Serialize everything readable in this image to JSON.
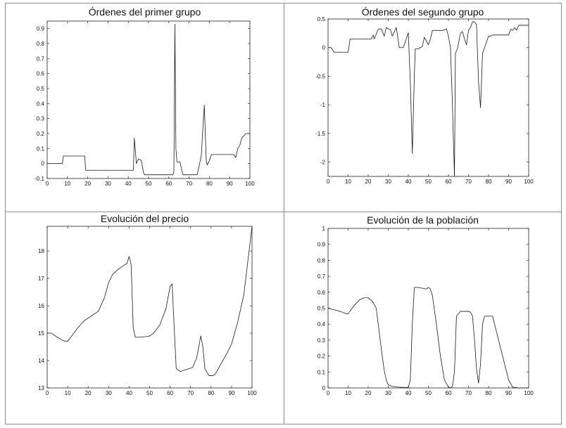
{
  "chart_data": [
    {
      "type": "line",
      "title": "Órdenes del primer grupo",
      "xlabel": "",
      "ylabel": "",
      "xlim": [
        0,
        100
      ],
      "ylim": [
        -0.1,
        0.95
      ],
      "xticks": [
        0,
        10,
        20,
        30,
        40,
        50,
        60,
        70,
        80,
        90,
        100
      ],
      "yticks": [
        -0.1,
        0,
        0.1,
        0.2,
        0.3,
        0.4,
        0.5,
        0.6,
        0.7,
        0.8,
        0.9
      ],
      "ytick_labels": [
        "-0.1",
        "0",
        "0.1",
        "0.2",
        "0.3",
        "0.4",
        "0.5",
        "0.6",
        "0.7",
        "0.8",
        "0.9"
      ],
      "grid": false,
      "series": [
        {
          "x": [
            0,
            7.5,
            8,
            18.5,
            19,
            42.5,
            43,
            44,
            45,
            46.5,
            47.5,
            48,
            62,
            62.5,
            63,
            63.5,
            64,
            65.5,
            66.5,
            67,
            72.5,
            74,
            76,
            77,
            77.5,
            78.5,
            79,
            80,
            81,
            82,
            92,
            93,
            94,
            95,
            96,
            98,
            100
          ],
          "y": [
            0,
            0,
            0.05,
            0.05,
            -0.045,
            -0.045,
            0.17,
            0.0,
            0.03,
            0.02,
            -0.06,
            -0.075,
            -0.075,
            -0.06,
            0.93,
            0.1,
            0.01,
            0.01,
            -0.05,
            -0.075,
            -0.075,
            -0.075,
            0.05,
            0.28,
            0.39,
            0.01,
            -0.01,
            0.02,
            0.06,
            0.06,
            0.06,
            0.04,
            0.1,
            0.12,
            0.17,
            0.2,
            0.2
          ]
        }
      ]
    },
    {
      "type": "line",
      "title": "Órdenes del segundo grupo",
      "xlabel": "",
      "ylabel": "",
      "xlim": [
        0,
        100
      ],
      "ylim": [
        -2.25,
        0.5
      ],
      "xticks": [
        0,
        10,
        20,
        30,
        40,
        50,
        60,
        70,
        80,
        90,
        100
      ],
      "yticks": [
        -2,
        -1.5,
        -1,
        -0.5,
        0,
        0.5
      ],
      "ytick_labels": [
        "-2",
        "-1.5",
        "-1",
        "-0.5",
        "0",
        "0.5"
      ],
      "grid": false,
      "series": [
        {
          "x": [
            0,
            1.5,
            3,
            10,
            11,
            21.5,
            22.5,
            23,
            25,
            26.5,
            28,
            29,
            30,
            31,
            32,
            34,
            35.5,
            37.5,
            38.5,
            40,
            41,
            42,
            43,
            43.5,
            45,
            47,
            48,
            50,
            51,
            52,
            57,
            58,
            59,
            60,
            61,
            62,
            63,
            63.5,
            64.5,
            66,
            67,
            68,
            69,
            70,
            71,
            72,
            73,
            74,
            75,
            76,
            77,
            78,
            80,
            81,
            82,
            90,
            91,
            92,
            93,
            94,
            95,
            100
          ],
          "y": [
            0,
            0,
            -0.08,
            -0.08,
            0.15,
            0.15,
            0.22,
            0.15,
            0.32,
            0.33,
            0.2,
            0.35,
            0.33,
            0.32,
            0.2,
            0.35,
            0.0,
            0.0,
            0.1,
            0.26,
            -0.6,
            -1.85,
            -0.5,
            -0.02,
            -0.02,
            0.02,
            0.18,
            0.05,
            0.15,
            0.3,
            0.3,
            0.31,
            0.33,
            0.2,
            0.0,
            -1.0,
            -2.25,
            -0.1,
            -0.02,
            0.25,
            0.28,
            0.15,
            0.05,
            0.3,
            0.35,
            0.45,
            0.45,
            0.4,
            -0.6,
            -1.05,
            -0.1,
            0.0,
            0.2,
            0.2,
            0.22,
            0.22,
            0.32,
            0.3,
            0.35,
            0.3,
            0.39,
            0.39
          ]
        }
      ]
    },
    {
      "type": "line",
      "title": "Evolución del precio",
      "xlabel": "",
      "ylabel": "",
      "xlim": [
        0,
        100
      ],
      "ylim": [
        13,
        18.9
      ],
      "xticks": [
        0,
        10,
        20,
        30,
        40,
        50,
        60,
        70,
        80,
        90,
        100
      ],
      "yticks": [
        13,
        14,
        15,
        16,
        17,
        18
      ],
      "ytick_labels": [
        "13",
        "14",
        "15",
        "16",
        "17",
        "18"
      ],
      "grid": false,
      "series": [
        {
          "x": [
            0,
            2,
            5,
            8,
            10,
            12,
            15,
            18,
            20,
            23,
            25,
            28,
            30,
            32,
            35,
            37,
            39,
            40,
            41,
            42,
            43,
            45,
            48,
            50,
            52,
            55,
            58,
            60,
            61,
            62,
            63,
            65,
            67,
            69,
            71,
            73,
            74,
            75,
            76,
            77,
            79,
            81,
            82,
            85,
            88,
            90,
            93,
            96,
            100
          ],
          "y": [
            15.0,
            15.0,
            14.85,
            14.72,
            14.7,
            14.9,
            15.2,
            15.45,
            15.55,
            15.7,
            15.8,
            16.3,
            16.85,
            17.15,
            17.35,
            17.45,
            17.55,
            17.8,
            17.5,
            15.2,
            14.85,
            14.85,
            14.87,
            14.9,
            15.0,
            15.3,
            15.9,
            16.7,
            16.8,
            15.2,
            13.7,
            13.6,
            13.65,
            13.7,
            13.75,
            14.1,
            14.5,
            14.9,
            14.5,
            13.7,
            13.45,
            13.45,
            13.5,
            13.9,
            14.3,
            14.6,
            15.4,
            16.4,
            18.9
          ]
        }
      ]
    },
    {
      "type": "line",
      "title": "Evolución de la población",
      "xlabel": "",
      "ylabel": "",
      "xlim": [
        0,
        100
      ],
      "ylim": [
        0,
        1
      ],
      "xticks": [
        0,
        10,
        20,
        30,
        40,
        50,
        60,
        70,
        80,
        90,
        100
      ],
      "yticks": [
        0,
        0.1,
        0.2,
        0.3,
        0.4,
        0.5,
        0.6,
        0.7,
        0.8,
        0.9,
        1
      ],
      "ytick_labels": [
        "0",
        "0.1",
        "0.2",
        "0.3",
        "0.4",
        "0.5",
        "0.6",
        "0.7",
        "0.8",
        "0.9",
        "1"
      ],
      "grid": false,
      "series": [
        {
          "x": [
            0,
            3,
            6,
            9,
            10,
            12,
            14,
            16,
            18,
            20,
            22,
            24,
            25,
            26,
            27,
            28,
            29,
            30,
            32,
            35,
            38,
            40,
            41,
            42,
            43,
            45,
            47,
            49,
            50,
            51,
            52,
            54,
            56,
            58,
            60,
            61,
            62,
            63,
            64,
            66,
            69,
            70,
            71,
            72,
            73,
            74,
            75,
            76,
            77,
            78,
            80,
            82,
            84,
            86,
            88,
            90,
            92,
            95,
            100
          ],
          "y": [
            0.5,
            0.49,
            0.48,
            0.465,
            0.465,
            0.5,
            0.53,
            0.555,
            0.565,
            0.565,
            0.545,
            0.5,
            0.4,
            0.3,
            0.2,
            0.11,
            0.05,
            0.02,
            0.01,
            0.005,
            0.003,
            0.003,
            0.05,
            0.4,
            0.63,
            0.63,
            0.625,
            0.62,
            0.63,
            0.62,
            0.58,
            0.4,
            0.2,
            0.05,
            0.005,
            0.0,
            0.01,
            0.1,
            0.45,
            0.48,
            0.48,
            0.48,
            0.475,
            0.45,
            0.3,
            0.12,
            0.03,
            0.15,
            0.4,
            0.45,
            0.45,
            0.45,
            0.35,
            0.25,
            0.15,
            0.05,
            0.005,
            0.0,
            0.0
          ]
        }
      ]
    }
  ]
}
